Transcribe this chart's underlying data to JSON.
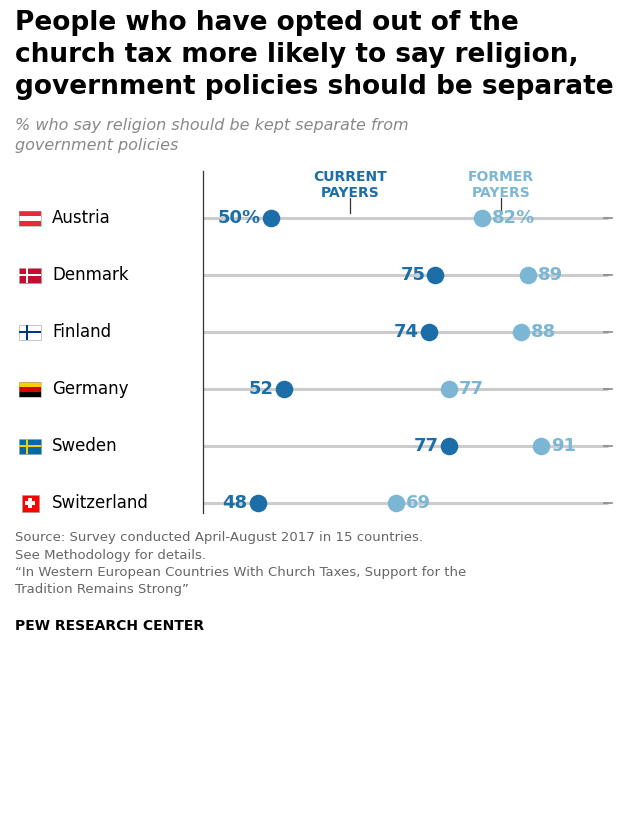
{
  "title_lines": [
    "People who have opted out of the",
    "church tax more likely to say religion,",
    "government policies should be separate"
  ],
  "subtitle": "% who say religion should be kept separate from\ngovernment policies",
  "countries": [
    "Austria",
    "Denmark",
    "Finland",
    "Germany",
    "Sweden",
    "Switzerland"
  ],
  "current_payers": [
    50,
    75,
    74,
    52,
    77,
    48
  ],
  "former_payers": [
    82,
    89,
    88,
    77,
    91,
    69
  ],
  "current_label": "CURRENT\nPAYERS",
  "former_label": "FORMER\nPAYERS",
  "current_color": "#1B6EA8",
  "former_color": "#7BB7D4",
  "line_color": "#CCCCCC",
  "axis_color": "#333333",
  "source_text": "Source: Survey conducted April-August 2017 in 15 countries.\nSee Methodology for details.\n“In Western European Countries With Church Taxes, Support for the\nTradition Remains Strong”",
  "footer": "PEW RESEARCH CENTER",
  "title_fontsize": 19,
  "subtitle_fontsize": 11.5,
  "header_fontsize": 10,
  "value_fontsize": 13,
  "country_fontsize": 12,
  "source_fontsize": 9.5,
  "footer_fontsize": 10
}
